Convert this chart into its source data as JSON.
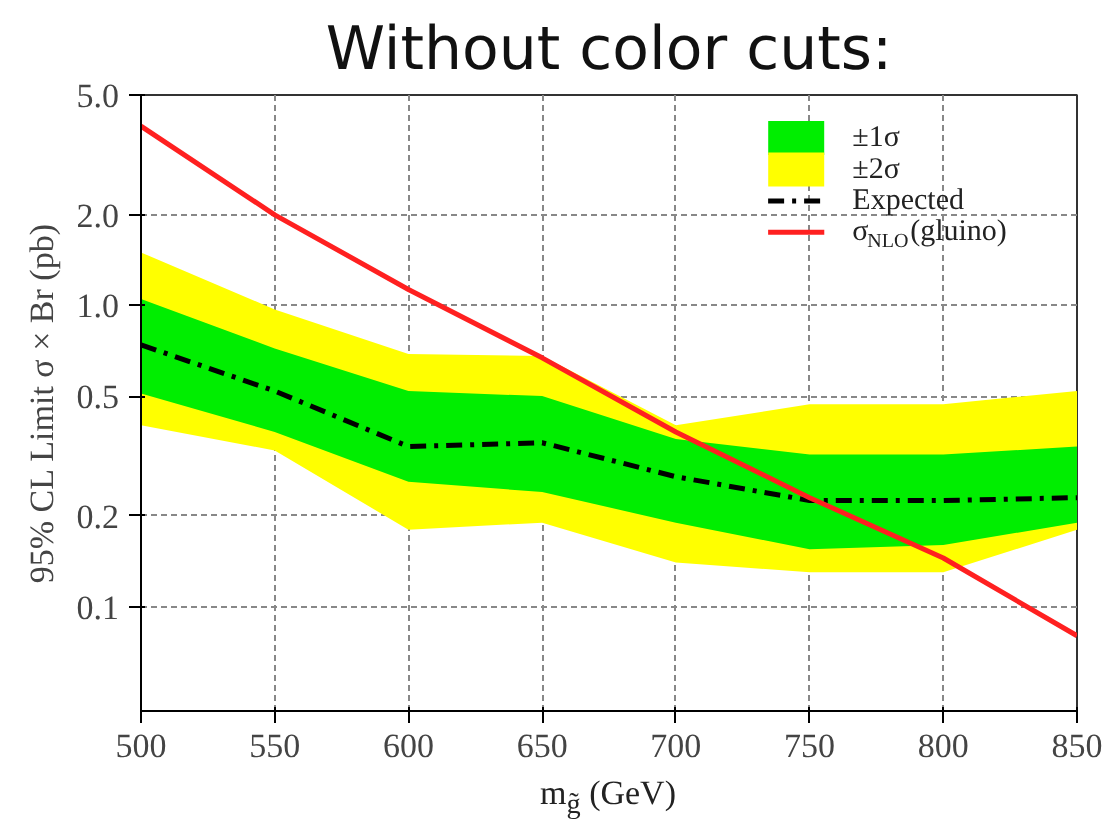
{
  "chart_data": {
    "type": "line",
    "title": "Without color cuts:",
    "xlabel": "m$_{g̃}$ (GeV)",
    "ylabel": "95% CL Limit σ × Br (pb)",
    "x": [
      500,
      550,
      600,
      650,
      700,
      750,
      800,
      850
    ],
    "series": [
      {
        "name": "±1σ",
        "type": "area",
        "color": "#00ee00",
        "values": [
          null,
          null,
          null,
          null,
          null,
          null,
          null,
          null
        ],
        "lower": [
          0.51,
          0.38,
          0.26,
          0.24,
          0.19,
          0.155,
          0.16,
          0.19
        ],
        "upper": [
          1.05,
          0.72,
          0.52,
          0.5,
          0.36,
          0.32,
          0.32,
          0.34
        ]
      },
      {
        "name": "±2σ",
        "type": "area",
        "color": "#ffff00",
        "values": [
          null,
          null,
          null,
          null,
          null,
          null,
          null,
          null
        ],
        "lower": [
          0.4,
          0.33,
          0.18,
          0.19,
          0.14,
          0.13,
          0.13,
          0.18
        ],
        "upper": [
          1.5,
          0.97,
          0.69,
          0.68,
          0.4,
          0.47,
          0.47,
          0.52
        ]
      },
      {
        "name": "Expected",
        "type": "line",
        "color": "#000000",
        "line_style": "dashdot",
        "values": [
          0.74,
          0.52,
          0.34,
          0.35,
          0.27,
          0.225,
          0.225,
          0.23
        ]
      },
      {
        "name": "σ$_{NLO}$(gluino)",
        "type": "line",
        "color": "#ff2020",
        "line_style": "solid",
        "values": [
          3.94,
          2.0,
          1.13,
          0.67,
          0.38,
          0.23,
          0.145,
          0.08
        ]
      }
    ],
    "log": "y",
    "xlim": [
      500,
      850
    ],
    "ylim": [
      0.045,
      5.0
    ],
    "xticks": [
      500,
      550,
      600,
      650,
      700,
      750,
      800,
      850
    ],
    "yticks": [
      0.1,
      0.2,
      0.5,
      {
        "value": 1,
        "label": "1.0"
      },
      {
        "value": 2,
        "label": "2.0"
      },
      {
        "value": 5,
        "label": "5.0"
      }
    ],
    "grid": true,
    "legend": "top right"
  }
}
